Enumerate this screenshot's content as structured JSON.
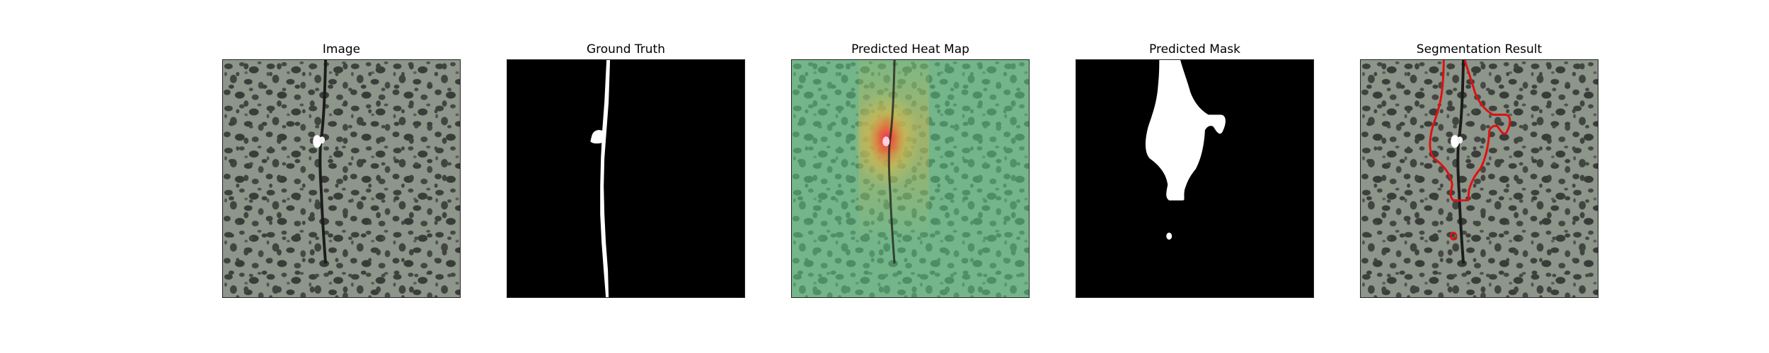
{
  "panels": [
    {
      "title": "Image"
    },
    {
      "title": "Ground Truth"
    },
    {
      "title": "Predicted Heat Map"
    },
    {
      "title": "Predicted Mask"
    },
    {
      "title": "Segmentation Result"
    }
  ],
  "colors": {
    "background": "#ffffff",
    "speckle_base": "#8c948a",
    "speckle_dark": "#3b3d3a",
    "mask_bg": "#000000",
    "mask_fg": "#ffffff",
    "heat_low": "#6fcf97",
    "heat_high": "#e0203a",
    "contour": "#e01010"
  }
}
